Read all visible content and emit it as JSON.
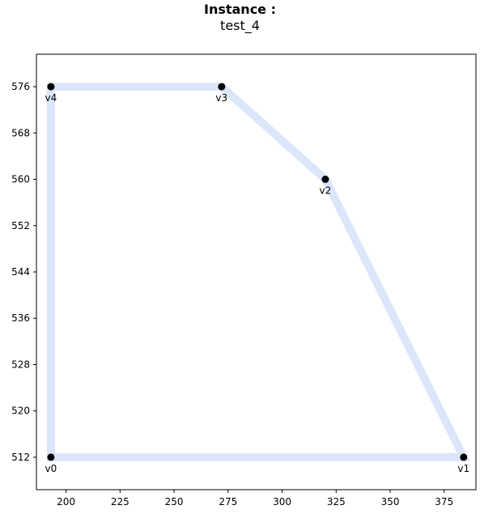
{
  "title": "Instance :",
  "subtitle": "test_4",
  "chart_data": {
    "type": "scatter",
    "points": [
      {
        "label": "v0",
        "x": 193,
        "y": 512
      },
      {
        "label": "v1",
        "x": 384,
        "y": 512
      },
      {
        "label": "v2",
        "x": 320,
        "y": 560
      },
      {
        "label": "v3",
        "x": 272,
        "y": 576
      },
      {
        "label": "v4",
        "x": 193,
        "y": 576
      }
    ],
    "polygon_order": [
      "v0",
      "v1",
      "v2",
      "v3",
      "v4"
    ],
    "polygon_color": "#dce6fa",
    "point_color": "#000000",
    "xticks": [
      200,
      225,
      250,
      275,
      300,
      325,
      350,
      375
    ],
    "yticks": [
      512,
      520,
      528,
      536,
      544,
      552,
      560,
      568,
      576
    ],
    "xlim": [
      186.3,
      389.7
    ],
    "ylim": [
      506.4,
      581.6
    ],
    "xlabel": "",
    "ylabel": "",
    "grid": false
  }
}
